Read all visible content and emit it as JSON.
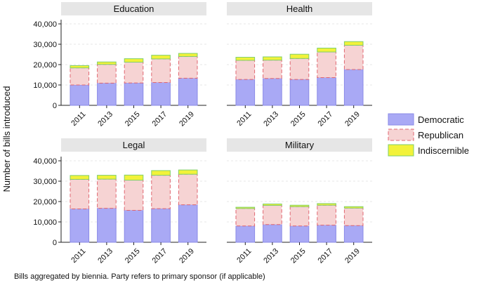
{
  "chart_data": {
    "type": "bar",
    "stacked": true,
    "ylabel": "Number of bills introduced",
    "ylim": [
      0,
      40000
    ],
    "yticks": [
      0,
      10000,
      20000,
      30000,
      40000
    ],
    "ytick_labels": [
      "0",
      "10,000",
      "20,000",
      "30,000",
      "40,000"
    ],
    "categories": [
      "2011",
      "2013",
      "2015",
      "2017",
      "2019"
    ],
    "caption": "Bills aggregated by biennia. Party refers to primary sponsor (if applicable)",
    "legend": [
      {
        "name": "Democratic",
        "color": "#a9a9f5",
        "edge": "#8a8ae6"
      },
      {
        "name": "Republican",
        "color": "#f6d3d3",
        "edge": "#e06670"
      },
      {
        "name": "Indiscernible",
        "color": "#f2f23a",
        "edge": "#7fcf6a"
      }
    ],
    "panels": [
      {
        "title": "Education",
        "series": {
          "Democratic": [
            10000,
            10900,
            11000,
            11200,
            13300
          ],
          "Republican": [
            8400,
            9200,
            10200,
            11600,
            10700
          ],
          "Indiscernible": [
            1100,
            1200,
            1700,
            1800,
            1500
          ]
        }
      },
      {
        "title": "Health",
        "series": {
          "Democratic": [
            12700,
            13200,
            12700,
            13600,
            17600
          ],
          "Republican": [
            9400,
            9000,
            10300,
            12600,
            11900
          ],
          "Indiscernible": [
            1500,
            1600,
            2100,
            1900,
            1800
          ]
        }
      },
      {
        "title": "Legal",
        "series": {
          "Democratic": [
            16400,
            16700,
            15700,
            16500,
            18400
          ],
          "Republican": [
            14500,
            14300,
            14800,
            16400,
            15000
          ],
          "Indiscernible": [
            1900,
            1900,
            2500,
            2300,
            2100
          ]
        }
      },
      {
        "title": "Military",
        "series": {
          "Democratic": [
            8000,
            8700,
            8000,
            8400,
            8200
          ],
          "Republican": [
            8600,
            9400,
            9500,
            9800,
            8600
          ],
          "Indiscernible": [
            600,
            700,
            700,
            800,
            700
          ]
        }
      }
    ]
  }
}
